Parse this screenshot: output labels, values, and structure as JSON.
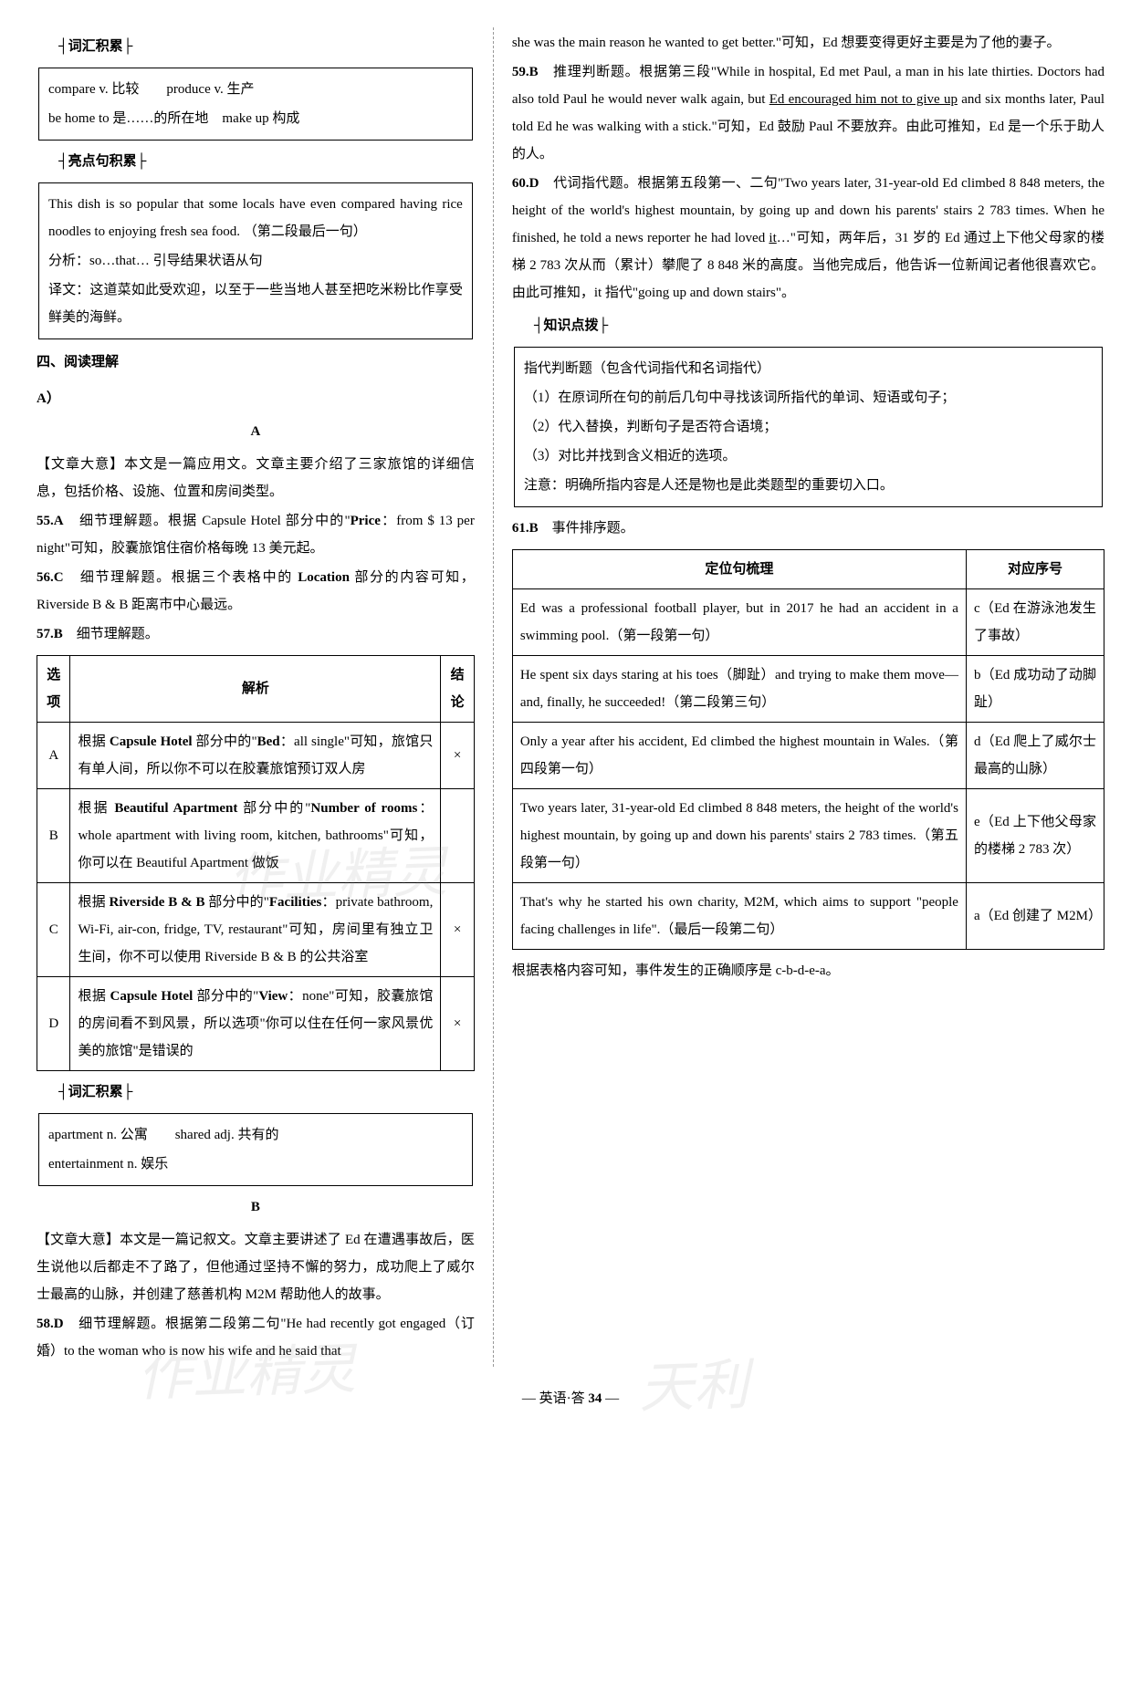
{
  "left": {
    "vocab1": {
      "label": "┤词汇积累├",
      "lines": [
        "compare v. 比较　　produce v. 生产",
        "be home to 是……的所在地　make up 构成"
      ]
    },
    "sentence1": {
      "label": "┤亮点句积累├",
      "lines": [
        "This dish is so popular that some locals have even compared having rice noodles to enjoying fresh sea food. （第二段最后一句）",
        "分析：so…that… 引导结果状语从句",
        "译文：这道菜如此受欢迎，以至于一些当地人甚至把吃米粉比作享受鲜美的海鲜。"
      ]
    },
    "reading_head": "四、阅读理解",
    "part_a": "A）",
    "letter_a": "A",
    "summary_a": "【文章大意】本文是一篇应用文。文章主要介绍了三家旅馆的详细信息，包括价格、设施、位置和房间类型。",
    "q55": "55.A　细节理解题。根据 Capsule Hotel 部分中的\"Price：from $ 13 per night\"可知，胶囊旅馆住宿价格每晚 13 美元起。",
    "q56": "56.C　细节理解题。根据三个表格中的 Location 部分的内容可知，Riverside B & B 距离市中心最远。",
    "q57": "57.B　细节理解题。",
    "table1": {
      "headers": [
        "选项",
        "解析",
        "结论"
      ],
      "rows": [
        [
          "A",
          "根据 Capsule Hotel 部分中的\"Bed：all single\"可知，旅馆只有单人间，所以你不可以在胶囊旅馆预订双人房",
          "×"
        ],
        [
          "B",
          "根据 Beautiful Apartment 部分中的\"Number of rooms：whole apartment with living room, kitchen, bathrooms\"可知，你可以在 Beautiful Apartment 做饭",
          ""
        ],
        [
          "C",
          "根据 Riverside B & B 部分中的\"Facilities：private bathroom, Wi-Fi, air-con, fridge, TV, restaurant\"可知，房间里有独立卫生间，你不可以使用 Riverside B & B 的公共浴室",
          "×"
        ],
        [
          "D",
          "根据 Capsule Hotel 部分中的\"View：none\"可知，胶囊旅馆的房间看不到风景，所以选项\"你可以住在任何一家风景优美的旅馆\"是错误的",
          "×"
        ]
      ]
    },
    "vocab2": {
      "label": "┤词汇积累├",
      "lines": [
        "apartment n. 公寓　　shared adj. 共有的",
        "entertainment n. 娱乐"
      ]
    },
    "letter_b": "B",
    "summary_b": "【文章大意】本文是一篇记叙文。文章主要讲述了 Ed 在遭遇事故后，医生说他以后都走不了路了，但他通过坚持不懈的努力，成功爬上了威尔士最高的山脉，并创建了慈善机构 M2M 帮助他人的故事。",
    "q58": "58.D　细节理解题。根据第二段第二句\"He had recently got engaged（订婚）to the woman who is now his wife and he said that"
  },
  "right": {
    "q58_cont": "she was the main reason he wanted to get better.\"可知，Ed 想要变得更好主要是为了他的妻子。",
    "q59_pre": "59.B　推理判断题。根据第三段\"While in hospital, Ed met Paul, a man in his late thirties. Doctors had also told Paul he would never walk again, but ",
    "q59_u": "Ed encouraged him not to give up",
    "q59_post": " and six months later, Paul told Ed he was walking with a stick.\"可知，Ed 鼓励 Paul 不要放弃。由此可推知，Ed 是一个乐于助人的人。",
    "q60_pre": "60.D　代词指代题。根据第五段第一、二句\"Two years later, 31-year-old Ed climbed 8 848 meters, the height of the world's highest mountain, by going up and down his parents' stairs 2 783 times. When he finished, he told a news reporter he had loved ",
    "q60_u": "it",
    "q60_post": "…\"可知，两年后，31 岁的 Ed 通过上下他父母家的楼梯 2 783 次从而（累计）攀爬了 8 848 米的高度。当他完成后，他告诉一位新闻记者他很喜欢它。由此可推知，it 指代\"going up and down stairs\"。",
    "knowledge": {
      "label": "┤知识点拨├",
      "lines": [
        "指代判断题（包含代词指代和名词指代）",
        "（1）在原词所在句的前后几句中寻找该词所指代的单词、短语或句子；",
        "（2）代入替换，判断句子是否符合语境；",
        "（3）对比并找到含义相近的选项。",
        "注意：明确所指内容是人还是物也是此类题型的重要切入口。"
      ]
    },
    "q61": "61.B　事件排序题。",
    "table2": {
      "headers": [
        "定位句梳理",
        "对应序号"
      ],
      "rows": [
        [
          "Ed was a professional football player, but in 2017 he had an accident in a swimming pool.（第一段第一句）",
          "c（Ed 在游泳池发生了事故）"
        ],
        [
          "He spent six days staring at his toes（脚趾）and trying to make them move—and, finally, he succeeded!（第二段第三句）",
          "b（Ed 成功动了动脚趾）"
        ],
        [
          "Only a year after his accident, Ed climbed the highest mountain in Wales.（第四段第一句）",
          "d（Ed 爬上了威尔士最高的山脉）"
        ],
        [
          "Two years later, 31-year-old Ed climbed 8 848 meters, the height of the world's highest mountain, by going up and down his parents' stairs 2 783 times.（第五段第一句）",
          "e（Ed 上下他父母家的楼梯 2 783 次）"
        ],
        [
          "That's why he started his own charity, M2M, which aims to support \"people facing challenges in life\".（最后一段第二句）",
          "a（Ed 创建了 M2M）"
        ]
      ]
    },
    "conclusion": "根据表格内容可知，事件发生的正确顺序是 c-b-d-e-a。"
  },
  "footer": "— 英语·答 34 —",
  "watermark": "作业精灵"
}
